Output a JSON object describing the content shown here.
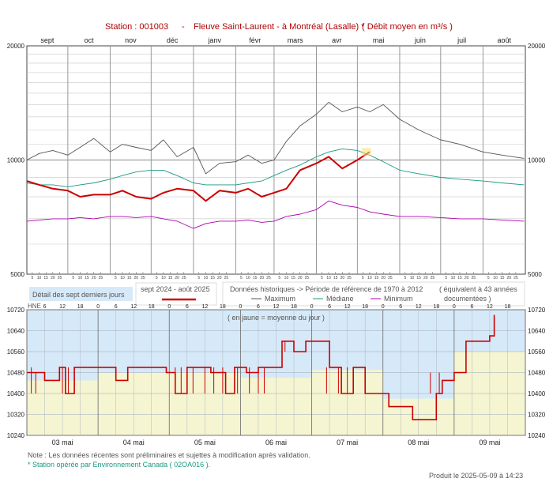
{
  "header": {
    "station": "Station : 001003",
    "dash": "-",
    "river": "Fleuve Saint-Laurent - à Montréal (Lasalle) *",
    "unit": "( Débit moyen en m³/s )"
  },
  "colors": {
    "current": "#cc0000",
    "max": "#555555",
    "median": "#1a9980",
    "min": "#b000b0",
    "upper_band": "#d6e9f8",
    "lower_band": "#f5f5d2",
    "grid": "#c8c8c8",
    "month_line": "#999999"
  },
  "legend": {
    "current_box_label": "Détail des sept derniers jours",
    "period_label": "sept 2024 - août 2025",
    "hist_title": "Données historiques -> Période de référence  de 1970 à 2012",
    "equiv": "( équivalent à 43 années",
    "equiv2": "documentées )",
    "max_label": "Maximum",
    "median_label": "Médiane",
    "min_label": "Minimum"
  },
  "notes": {
    "note1": "Note : Les données récentes sont préliminaires et sujettes à modification après validation.",
    "note2": "* Station opérée par Environnement Canada ( 02OA016 ).",
    "produced": "Produit le 2025-05-09 à 14:23"
  },
  "chart_data": [
    {
      "type": "line",
      "title": "Station : 001003  -  Fleuve Saint-Laurent - à Montréal (Lasalle) *  ( Débit moyen en m³/s )",
      "y_scale": "log",
      "ylim": [
        5000,
        20000
      ],
      "y_ticks": [
        "20000",
        "10000",
        "5000"
      ],
      "months": [
        "sept",
        "oct",
        "nov",
        "déc",
        "janv",
        "févr",
        "mars",
        "avr",
        "mai",
        "juin",
        "juil",
        "août"
      ],
      "day_ticks": "5 10 15 20 25",
      "x": [
        "2024-09-01",
        "2024-09-10",
        "2024-09-20",
        "2024-10-01",
        "2024-10-10",
        "2024-10-20",
        "2024-11-01",
        "2024-11-10",
        "2024-11-20",
        "2024-12-01",
        "2024-12-10",
        "2024-12-20",
        "2025-01-01",
        "2025-01-10",
        "2025-01-20",
        "2025-02-01",
        "2025-02-10",
        "2025-02-20",
        "2025-03-01",
        "2025-03-10",
        "2025-03-20",
        "2025-04-01",
        "2025-04-10",
        "2025-04-20",
        "2025-05-01",
        "2025-05-10",
        "2025-05-20",
        "2025-06-01",
        "2025-06-15",
        "2025-07-01",
        "2025-07-15",
        "2025-08-01",
        "2025-08-15",
        "2025-08-31"
      ],
      "series": [
        {
          "name": "Maximum",
          "values": [
            10000,
            10400,
            10600,
            10300,
            10800,
            11400,
            10500,
            11000,
            10800,
            10600,
            11300,
            10200,
            10800,
            9200,
            9800,
            9900,
            10300,
            9800,
            10000,
            11200,
            12300,
            13200,
            14200,
            13400,
            13800,
            13400,
            14000,
            12800,
            12000,
            11300,
            11000,
            10500,
            10300,
            10100
          ]
        },
        {
          "name": "Médiane",
          "values": [
            8700,
            8600,
            8600,
            8500,
            8600,
            8700,
            8900,
            9100,
            9300,
            9400,
            9400,
            9100,
            8700,
            8600,
            8600,
            8600,
            8700,
            8800,
            9100,
            9400,
            9700,
            10200,
            10500,
            10700,
            10600,
            10300,
            9900,
            9400,
            9200,
            9000,
            8900,
            8800,
            8700,
            8600
          ]
        },
        {
          "name": "Minimum",
          "values": [
            6900,
            6950,
            7000,
            7000,
            7050,
            7000,
            7100,
            7100,
            7050,
            7100,
            7000,
            6900,
            6600,
            6800,
            6900,
            6900,
            6950,
            6850,
            6900,
            7100,
            7200,
            7400,
            7800,
            7600,
            7500,
            7300,
            7200,
            7100,
            7100,
            7050,
            7000,
            7000,
            6950,
            6900
          ]
        },
        {
          "name": "sept 2024 - août 2025",
          "values": [
            8800,
            8600,
            8400,
            8300,
            8000,
            8100,
            8100,
            8300,
            8000,
            7900,
            8200,
            8400,
            8300,
            7800,
            8300,
            8200,
            8400,
            8000,
            8200,
            8400,
            9400,
            9800,
            10200,
            9500,
            10000,
            10500,
            null,
            null,
            null,
            null,
            null,
            null,
            null,
            null
          ]
        }
      ]
    },
    {
      "type": "line",
      "title": "Détail des sept derniers jours",
      "annotation": "( en jaune = moyenne du jour )",
      "hne_label": "HNE",
      "ylim": [
        10240,
        10720
      ],
      "y_ticks": [
        10240,
        10320,
        10400,
        10480,
        10560,
        10640,
        10720
      ],
      "hour_labels": [
        "6",
        "12",
        "18",
        "0"
      ],
      "days": [
        "03 mai",
        "04 mai",
        "05 mai",
        "06 mai",
        "07 mai",
        "08 mai",
        "09 mai"
      ],
      "daily_means": [
        10450,
        10480,
        10480,
        10460,
        10490,
        10380,
        10560
      ],
      "series": [
        {
          "name": "sept 2024 - août 2025",
          "x_hours": [
            0,
            6,
            11,
            13,
            16,
            21,
            26,
            30,
            34,
            38,
            44,
            47,
            50,
            54,
            58,
            62,
            67,
            70,
            74,
            78,
            82,
            86,
            90,
            94,
            98,
            102,
            106,
            110,
            114,
            118,
            122,
            126,
            130,
            134,
            138,
            140,
            144,
            148,
            152,
            156,
            157.5
          ],
          "values": [
            10480,
            10450,
            10500,
            10400,
            10500,
            10500,
            10500,
            10450,
            10500,
            10500,
            10500,
            10480,
            10400,
            10500,
            10500,
            10480,
            10400,
            10500,
            10480,
            10500,
            10500,
            10600,
            10560,
            10600,
            10600,
            10500,
            10400,
            10500,
            10400,
            10400,
            10350,
            10350,
            10300,
            10300,
            10400,
            10450,
            10480,
            10600,
            10600,
            10620,
            10700
          ]
        }
      ]
    }
  ]
}
